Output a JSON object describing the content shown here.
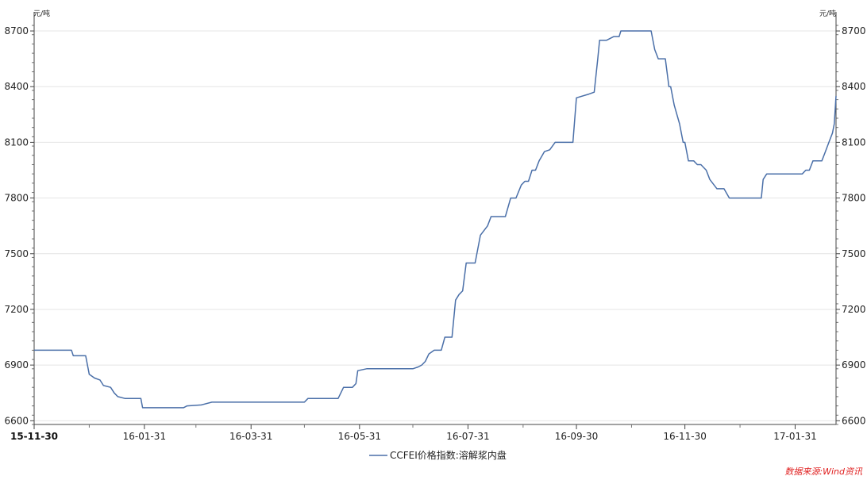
{
  "chart_data": {
    "type": "line",
    "y_unit_left": "元/吨",
    "y_unit_right": "元/吨",
    "ylim": [
      6580,
      8760
    ],
    "y_ticks": [
      6600,
      6900,
      7200,
      7500,
      7800,
      8100,
      8400,
      8700
    ],
    "x_range": [
      "2015-11-30",
      "2017-02-23"
    ],
    "x_tick_labels": [
      "15-11-30",
      "16-01-31",
      "16-03-31",
      "16-05-31",
      "16-07-31",
      "16-09-30",
      "16-11-30",
      "17-01-31"
    ],
    "x_tick_dates": [
      "2015-11-30",
      "2016-01-31",
      "2016-03-31",
      "2016-05-31",
      "2016-07-31",
      "2016-09-30",
      "2016-11-30",
      "2017-01-31"
    ],
    "grid": true,
    "legend_position": "bottom-center",
    "series": [
      {
        "name": "CCFEI价格指数:溶解浆内盘",
        "color": "#4a6fa8",
        "points": [
          [
            "2015-11-30",
            6980
          ],
          [
            "2015-12-21",
            6980
          ],
          [
            "2015-12-22",
            6950
          ],
          [
            "2015-12-29",
            6950
          ],
          [
            "2015-12-31",
            6850
          ],
          [
            "2016-01-03",
            6830
          ],
          [
            "2016-01-06",
            6820
          ],
          [
            "2016-01-08",
            6790
          ],
          [
            "2016-01-12",
            6780
          ],
          [
            "2016-01-14",
            6750
          ],
          [
            "2016-01-16",
            6730
          ],
          [
            "2016-01-20",
            6720
          ],
          [
            "2016-01-29",
            6720
          ],
          [
            "2016-01-30",
            6670
          ],
          [
            "2016-02-22",
            6670
          ],
          [
            "2016-02-24",
            6680
          ],
          [
            "2016-03-03",
            6685
          ],
          [
            "2016-03-09",
            6700
          ],
          [
            "2016-04-30",
            6700
          ],
          [
            "2016-05-02",
            6720
          ],
          [
            "2016-05-19",
            6720
          ],
          [
            "2016-05-22",
            6780
          ],
          [
            "2016-05-27",
            6780
          ],
          [
            "2016-05-29",
            6800
          ],
          [
            "2016-05-30",
            6870
          ],
          [
            "2016-06-04",
            6880
          ],
          [
            "2016-06-30",
            6880
          ],
          [
            "2016-07-03",
            6890
          ],
          [
            "2016-07-05",
            6900
          ],
          [
            "2016-07-07",
            6920
          ],
          [
            "2016-07-09",
            6960
          ],
          [
            "2016-07-12",
            6980
          ],
          [
            "2016-07-16",
            6980
          ],
          [
            "2016-07-18",
            7050
          ],
          [
            "2016-07-22",
            7050
          ],
          [
            "2016-07-24",
            7250
          ],
          [
            "2016-07-26",
            7280
          ],
          [
            "2016-07-28",
            7300
          ],
          [
            "2016-07-30",
            7450
          ],
          [
            "2016-08-04",
            7450
          ],
          [
            "2016-08-07",
            7600
          ],
          [
            "2016-08-11",
            7650
          ],
          [
            "2016-08-13",
            7700
          ],
          [
            "2016-08-21",
            7700
          ],
          [
            "2016-08-24",
            7800
          ],
          [
            "2016-08-27",
            7800
          ],
          [
            "2016-08-30",
            7870
          ],
          [
            "2016-09-01",
            7890
          ],
          [
            "2016-09-03",
            7890
          ],
          [
            "2016-09-05",
            7950
          ],
          [
            "2016-09-07",
            7950
          ],
          [
            "2016-09-09",
            8000
          ],
          [
            "2016-09-12",
            8050
          ],
          [
            "2016-09-15",
            8060
          ],
          [
            "2016-09-18",
            8100
          ],
          [
            "2016-09-28",
            8100
          ],
          [
            "2016-09-30",
            8340
          ],
          [
            "2016-10-07",
            8360
          ],
          [
            "2016-10-10",
            8370
          ],
          [
            "2016-10-12",
            8550
          ],
          [
            "2016-10-13",
            8650
          ],
          [
            "2016-10-17",
            8650
          ],
          [
            "2016-10-21",
            8670
          ],
          [
            "2016-10-24",
            8670
          ],
          [
            "2016-10-25",
            8700
          ],
          [
            "2016-11-11",
            8700
          ],
          [
            "2016-11-13",
            8600
          ],
          [
            "2016-11-15",
            8550
          ],
          [
            "2016-11-19",
            8550
          ],
          [
            "2016-11-21",
            8400
          ],
          [
            "2016-11-22",
            8400
          ],
          [
            "2016-11-24",
            8300
          ],
          [
            "2016-11-27",
            8200
          ],
          [
            "2016-11-29",
            8100
          ],
          [
            "2016-11-30",
            8100
          ],
          [
            "2016-12-02",
            8000
          ],
          [
            "2016-12-05",
            8000
          ],
          [
            "2016-12-07",
            7980
          ],
          [
            "2016-12-09",
            7980
          ],
          [
            "2016-12-12",
            7950
          ],
          [
            "2016-12-14",
            7900
          ],
          [
            "2016-12-18",
            7850
          ],
          [
            "2016-12-22",
            7850
          ],
          [
            "2016-12-25",
            7800
          ],
          [
            "2017-01-12",
            7800
          ],
          [
            "2017-01-13",
            7900
          ],
          [
            "2017-01-15",
            7930
          ],
          [
            "2017-02-04",
            7930
          ],
          [
            "2017-02-06",
            7950
          ],
          [
            "2017-02-08",
            7950
          ],
          [
            "2017-02-10",
            8000
          ],
          [
            "2017-02-15",
            8000
          ],
          [
            "2017-02-17",
            8050
          ],
          [
            "2017-02-19",
            8100
          ],
          [
            "2017-02-21",
            8150
          ],
          [
            "2017-02-22",
            8200
          ],
          [
            "2017-02-23",
            8350
          ]
        ]
      }
    ]
  },
  "source_note": "数据来源:Wind资讯"
}
